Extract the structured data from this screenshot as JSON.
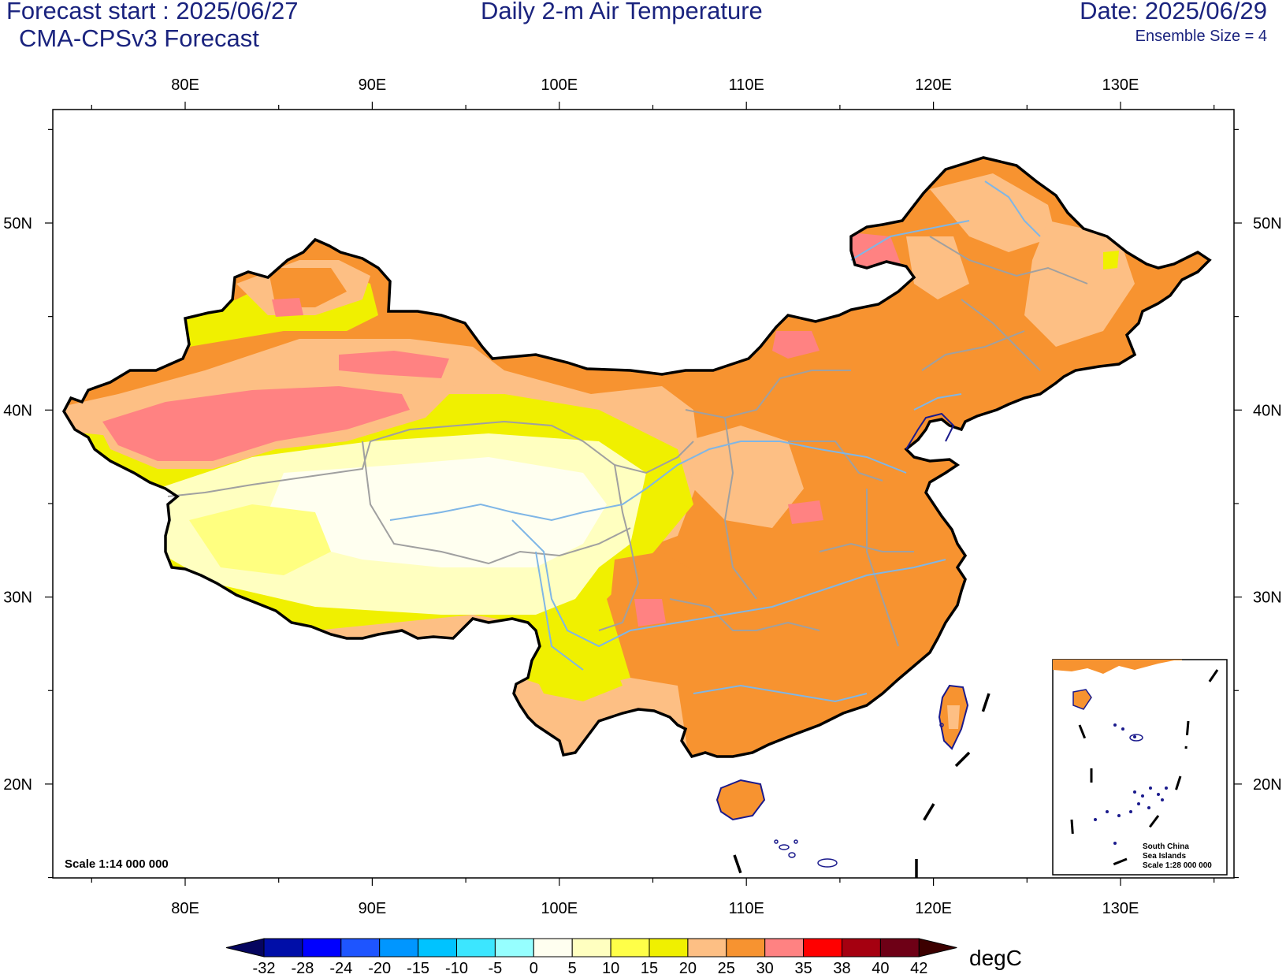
{
  "header": {
    "forecast_start": "Forecast start : 2025/06/27",
    "model": "CMA-CPSv3 Forecast",
    "title": "Daily 2-m Air Temperature",
    "date": "Date: 2025/06/29",
    "ensemble": "Ensemble Size = 4"
  },
  "map": {
    "lon_labels": [
      "80E",
      "90E",
      "100E",
      "110E",
      "120E",
      "130E"
    ],
    "lat_labels": [
      "50N",
      "40N",
      "30N",
      "20N"
    ],
    "scale": "Scale 1:14 000 000",
    "inset": {
      "line1": "South China",
      "line2": "Sea Islands",
      "line3": "Scale 1:28 000 000"
    }
  },
  "colorbar": {
    "unit": "degC",
    "levels": [
      "-32",
      "-28",
      "-24",
      "-20",
      "-15",
      "-10",
      "-5",
      "0",
      "5",
      "10",
      "15",
      "20",
      "25",
      "30",
      "35",
      "38",
      "40",
      "42"
    ],
    "colors": [
      "#05055f",
      "#000ea8",
      "#0000ff",
      "#1e55ff",
      "#0096ff",
      "#00c3ff",
      "#3ce6ff",
      "#96ffff",
      "#fffff0",
      "#ffffc0",
      "#ffff48",
      "#f0f000",
      "#fdbf84",
      "#f79330",
      "#ff8282",
      "#ff0000",
      "#a50010",
      "#6e0016",
      "#3c0000"
    ]
  },
  "legend_colors": {
    "bg": "#ffffff",
    "text_blue": "#1a237e",
    "border": "#000000",
    "province": "#a0a0a0",
    "river": "#7fb6e6",
    "coast": "#1a1a8c"
  }
}
